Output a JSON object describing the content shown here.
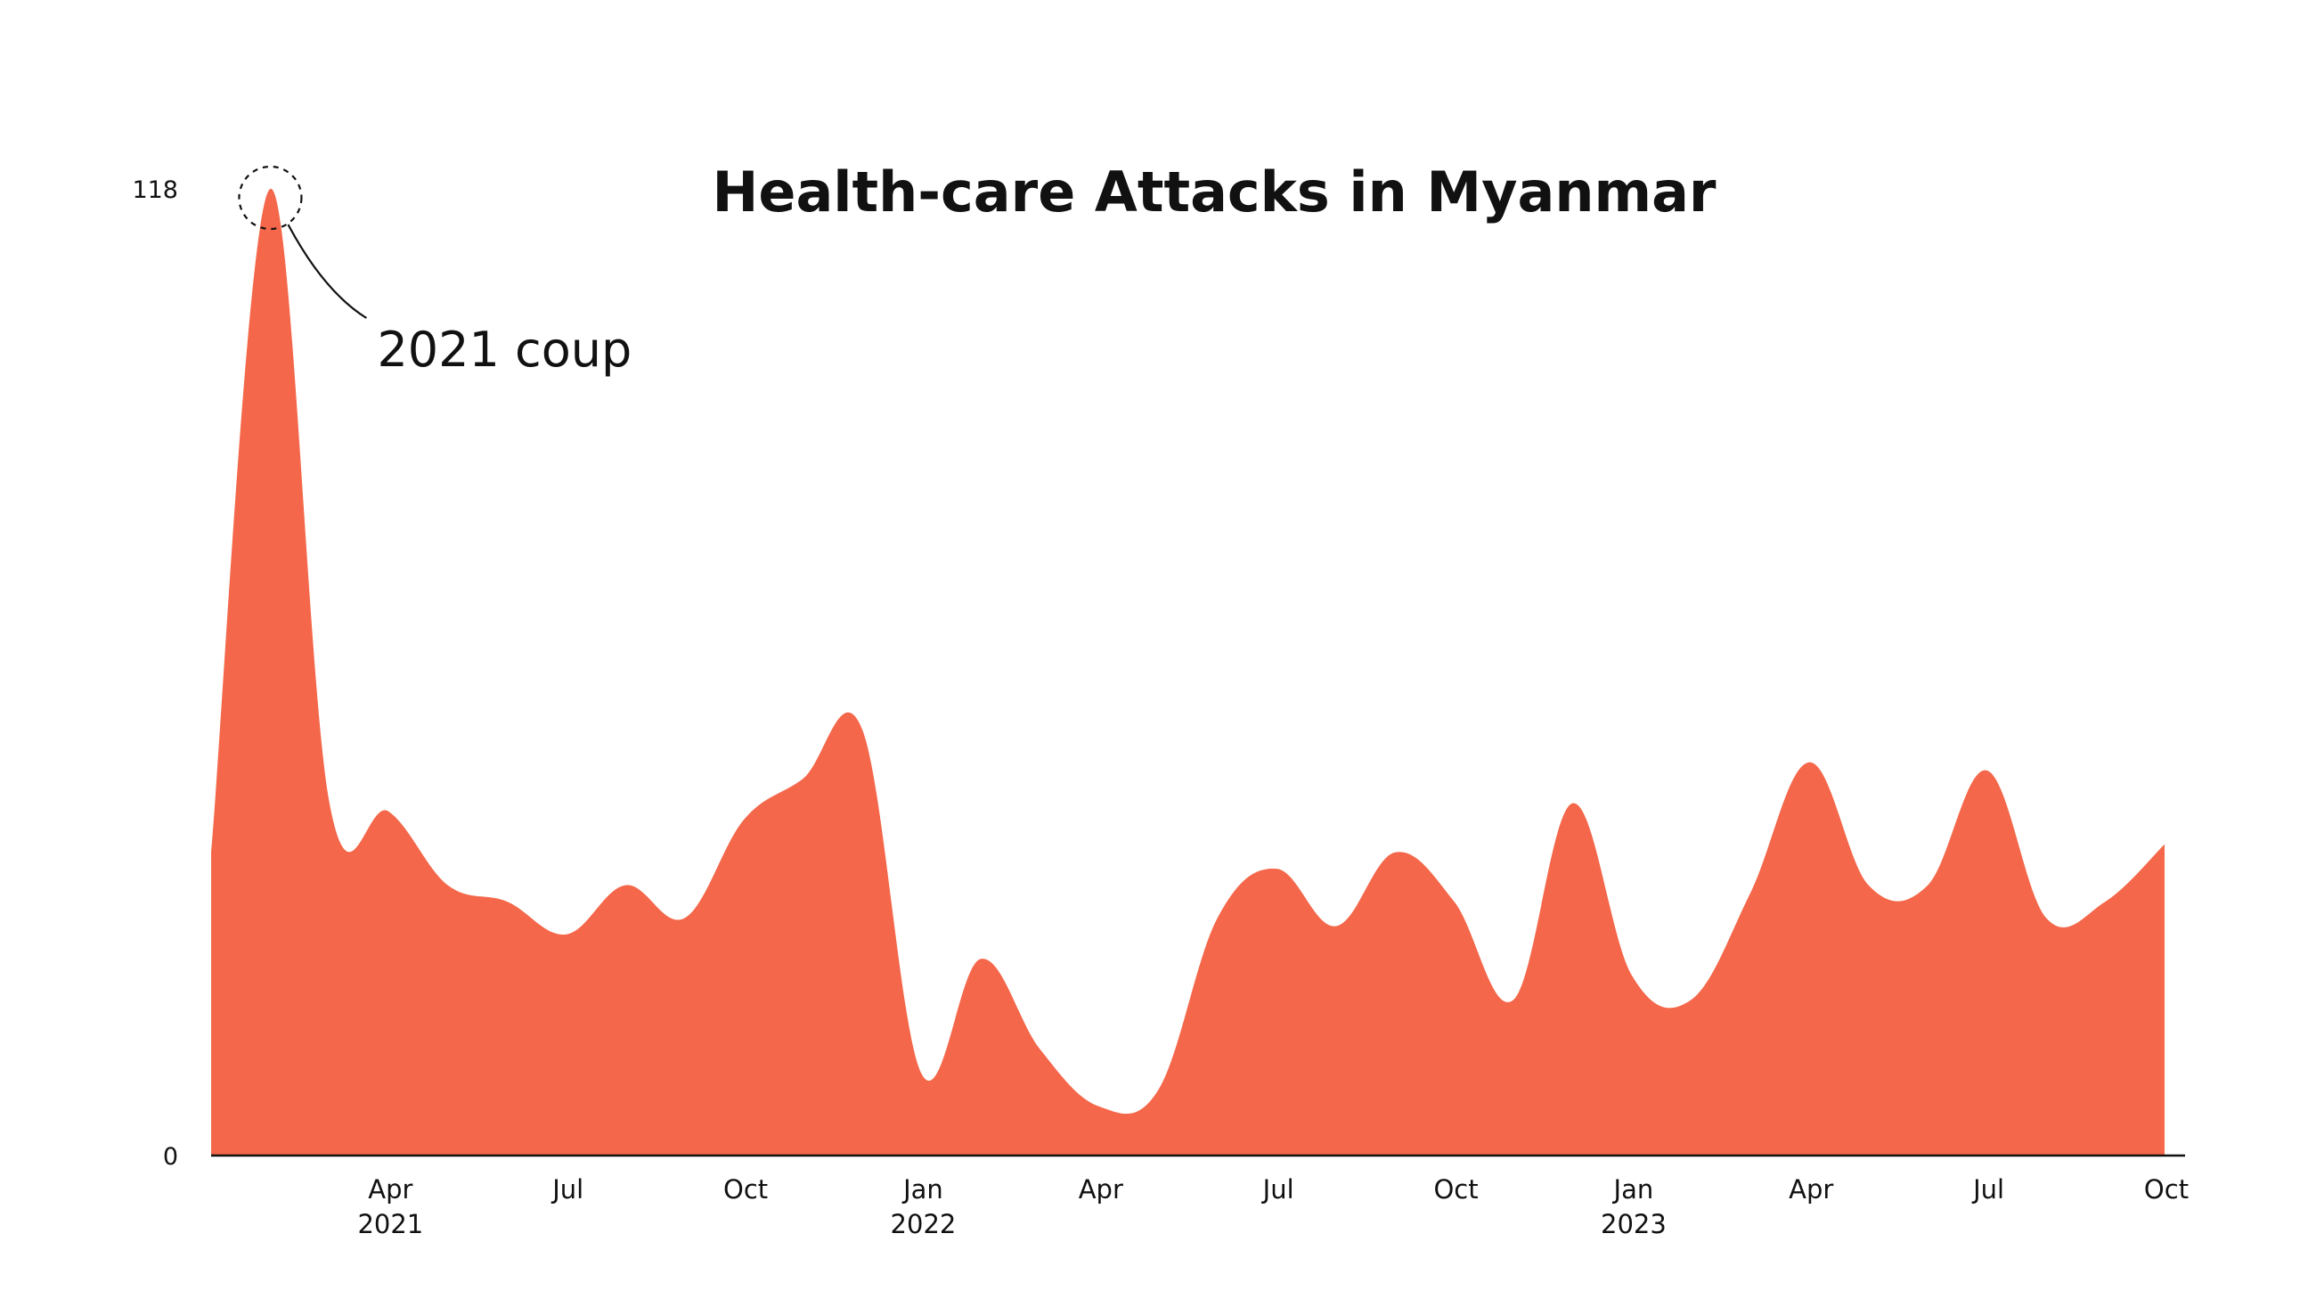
{
  "chart_data": {
    "type": "area",
    "title": "Health-care Attacks in Myanmar",
    "xlabel": "",
    "ylabel": "",
    "ylim": [
      0,
      118
    ],
    "y_ticks": [
      "0",
      "118"
    ],
    "grid": false,
    "color": "#F4674A",
    "x_ticks": [
      {
        "month": "Apr",
        "year": "2021",
        "month_index": 3
      },
      {
        "month": "Jul",
        "year": "",
        "month_index": 6
      },
      {
        "month": "Oct",
        "year": "",
        "month_index": 9
      },
      {
        "month": "Jan",
        "year": "2022",
        "month_index": 12
      },
      {
        "month": "Apr",
        "year": "",
        "month_index": 15
      },
      {
        "month": "Jul",
        "year": "",
        "month_index": 18
      },
      {
        "month": "Oct",
        "year": "",
        "month_index": 21
      },
      {
        "month": "Jan",
        "year": "2023",
        "month_index": 24
      },
      {
        "month": "Apr",
        "year": "",
        "month_index": 27
      },
      {
        "month": "Jul",
        "year": "",
        "month_index": 30
      },
      {
        "month": "Oct",
        "year": "",
        "month_index": 33
      }
    ],
    "series": [
      {
        "name": "Health-care attacks",
        "points": [
          {
            "x": 0.0,
            "y": 37
          },
          {
            "x": 1.0,
            "y": 118
          },
          {
            "x": 2.0,
            "y": 43
          },
          {
            "x": 3.0,
            "y": 42
          },
          {
            "x": 4.0,
            "y": 33
          },
          {
            "x": 5.0,
            "y": 31
          },
          {
            "x": 6.0,
            "y": 27
          },
          {
            "x": 7.0,
            "y": 33
          },
          {
            "x": 8.0,
            "y": 29
          },
          {
            "x": 9.0,
            "y": 41
          },
          {
            "x": 10.0,
            "y": 46
          },
          {
            "x": 11.0,
            "y": 52
          },
          {
            "x": 12.0,
            "y": 10
          },
          {
            "x": 13.0,
            "y": 24
          },
          {
            "x": 14.0,
            "y": 13
          },
          {
            "x": 15.0,
            "y": 6
          },
          {
            "x": 16.0,
            "y": 8
          },
          {
            "x": 17.0,
            "y": 29
          },
          {
            "x": 18.0,
            "y": 35
          },
          {
            "x": 19.0,
            "y": 28
          },
          {
            "x": 20.0,
            "y": 37
          },
          {
            "x": 21.0,
            "y": 31
          },
          {
            "x": 22.0,
            "y": 19
          },
          {
            "x": 23.0,
            "y": 43
          },
          {
            "x": 24.0,
            "y": 22
          },
          {
            "x": 25.0,
            "y": 19
          },
          {
            "x": 26.0,
            "y": 32
          },
          {
            "x": 27.0,
            "y": 48
          },
          {
            "x": 28.0,
            "y": 33
          },
          {
            "x": 29.0,
            "y": 33
          },
          {
            "x": 30.0,
            "y": 47
          },
          {
            "x": 31.0,
            "y": 29
          },
          {
            "x": 32.0,
            "y": 31
          },
          {
            "x": 33.0,
            "y": 38
          }
        ]
      }
    ],
    "annotation": {
      "text": "2021 coup",
      "target_x": 1.0,
      "target_y": 118
    }
  }
}
